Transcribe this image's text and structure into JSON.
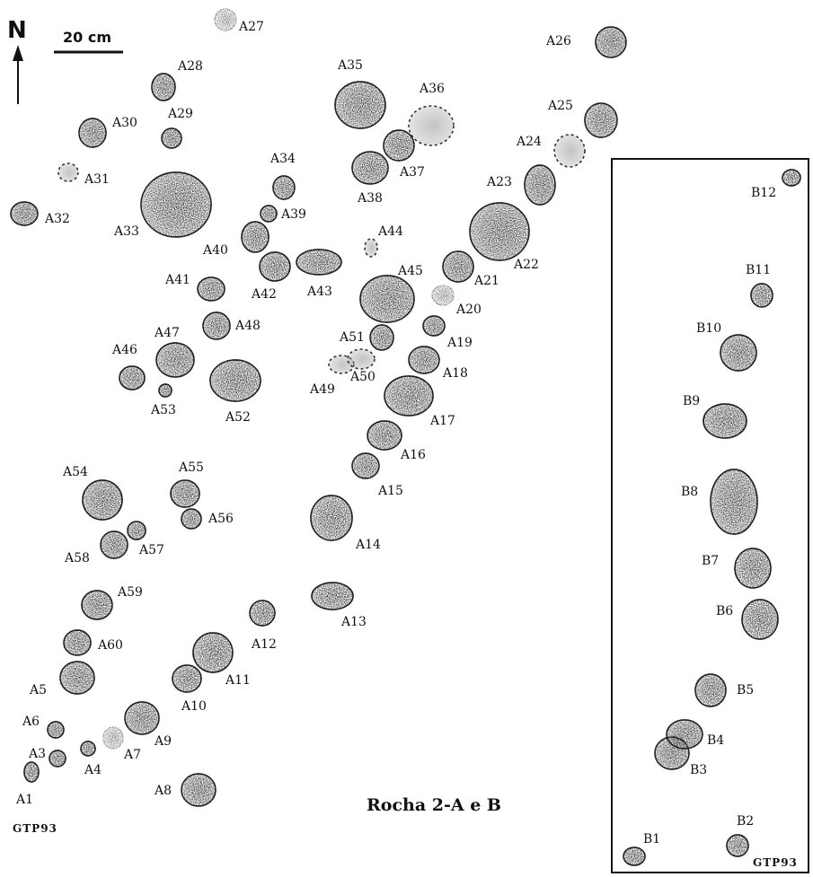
{
  "north_label": "N",
  "scale_label": "20 cm",
  "caption": "Rocha 2-A e B",
  "source_left": "GTP93",
  "source_right": "GTP93",
  "colors": {
    "ink": "#1b1b1b",
    "paper": "#ffffff"
  },
  "features": [
    {
      "id": "A1",
      "label": "A1",
      "style": "solid"
    },
    {
      "id": "A3",
      "label": "A3",
      "style": "solid"
    },
    {
      "id": "A4",
      "label": "A4",
      "style": "solid"
    },
    {
      "id": "A5",
      "label": "A5",
      "style": "solid"
    },
    {
      "id": "A6",
      "label": "A6",
      "style": "solid"
    },
    {
      "id": "A7",
      "label": "A7",
      "style": "light"
    },
    {
      "id": "A8",
      "label": "A8",
      "style": "solid"
    },
    {
      "id": "A9",
      "label": "A9",
      "style": "solid"
    },
    {
      "id": "A10",
      "label": "A10",
      "style": "solid"
    },
    {
      "id": "A11",
      "label": "A11",
      "style": "solid"
    },
    {
      "id": "A12",
      "label": "A12",
      "style": "solid"
    },
    {
      "id": "A13",
      "label": "A13",
      "style": "solid"
    },
    {
      "id": "A14",
      "label": "A14",
      "style": "solid"
    },
    {
      "id": "A15",
      "label": "A15",
      "style": "solid"
    },
    {
      "id": "A16",
      "label": "A16",
      "style": "solid"
    },
    {
      "id": "A17",
      "label": "A17",
      "style": "solid"
    },
    {
      "id": "A18",
      "label": "A18",
      "style": "solid"
    },
    {
      "id": "A19",
      "label": "A19",
      "style": "solid"
    },
    {
      "id": "A20",
      "label": "A20",
      "style": "light"
    },
    {
      "id": "A21",
      "label": "A21",
      "style": "solid"
    },
    {
      "id": "A22",
      "label": "A22",
      "style": "solid"
    },
    {
      "id": "A23",
      "label": "A23",
      "style": "solid"
    },
    {
      "id": "A24",
      "label": "A24",
      "style": "dashed"
    },
    {
      "id": "A25",
      "label": "A25",
      "style": "solid"
    },
    {
      "id": "A26",
      "label": "A26",
      "style": "solid"
    },
    {
      "id": "A27",
      "label": "A27",
      "style": "light"
    },
    {
      "id": "A28",
      "label": "A28",
      "style": "solid"
    },
    {
      "id": "A29",
      "label": "A29",
      "style": "solid"
    },
    {
      "id": "A30",
      "label": "A30",
      "style": "solid"
    },
    {
      "id": "A31",
      "label": "A31",
      "style": "dashed"
    },
    {
      "id": "A32",
      "label": "A32",
      "style": "solid"
    },
    {
      "id": "A33",
      "label": "A33",
      "style": "solid"
    },
    {
      "id": "A34",
      "label": "A34",
      "style": "solid"
    },
    {
      "id": "A35",
      "label": "A35",
      "style": "solid"
    },
    {
      "id": "A36",
      "label": "A36",
      "style": "dashed"
    },
    {
      "id": "A37",
      "label": "A37",
      "style": "solid"
    },
    {
      "id": "A38",
      "label": "A38",
      "style": "solid"
    },
    {
      "id": "A39",
      "label": "A39",
      "style": "solid"
    },
    {
      "id": "A40",
      "label": "A40",
      "style": "solid"
    },
    {
      "id": "A41",
      "label": "A41",
      "style": "solid"
    },
    {
      "id": "A42",
      "label": "A42",
      "style": "solid"
    },
    {
      "id": "A43",
      "label": "A43",
      "style": "solid"
    },
    {
      "id": "A44",
      "label": "A44",
      "style": "dashed"
    },
    {
      "id": "A45",
      "label": "A45",
      "style": "solid"
    },
    {
      "id": "A46",
      "label": "A46",
      "style": "solid"
    },
    {
      "id": "A47",
      "label": "A47",
      "style": "solid"
    },
    {
      "id": "A48",
      "label": "A48",
      "style": "solid"
    },
    {
      "id": "A49",
      "label": "A49",
      "style": "dashed"
    },
    {
      "id": "A50",
      "label": "A50",
      "style": "dashed"
    },
    {
      "id": "A51",
      "label": "A51",
      "style": "solid"
    },
    {
      "id": "A52",
      "label": "A52",
      "style": "solid"
    },
    {
      "id": "A53",
      "label": "A53",
      "style": "solid"
    },
    {
      "id": "A54",
      "label": "A54",
      "style": "solid"
    },
    {
      "id": "A55",
      "label": "A55",
      "style": "solid"
    },
    {
      "id": "A56",
      "label": "A56",
      "style": "solid"
    },
    {
      "id": "A57",
      "label": "A57",
      "style": "solid"
    },
    {
      "id": "A58",
      "label": "A58",
      "style": "solid"
    },
    {
      "id": "A59",
      "label": "A59",
      "style": "solid"
    },
    {
      "id": "A60",
      "label": "A60",
      "style": "solid"
    },
    {
      "id": "B1",
      "label": "B1",
      "style": "solid"
    },
    {
      "id": "B2",
      "label": "B2",
      "style": "solid"
    },
    {
      "id": "B3",
      "label": "B3",
      "style": "solid"
    },
    {
      "id": "B4",
      "label": "B4",
      "style": "solid"
    },
    {
      "id": "B5",
      "label": "B5",
      "style": "solid"
    },
    {
      "id": "B6",
      "label": "B6",
      "style": "solid"
    },
    {
      "id": "B7",
      "label": "B7",
      "style": "solid"
    },
    {
      "id": "B8",
      "label": "B8",
      "style": "solid"
    },
    {
      "id": "B9",
      "label": "B9",
      "style": "solid"
    },
    {
      "id": "B10",
      "label": "B10",
      "style": "solid"
    },
    {
      "id": "B11",
      "label": "B11",
      "style": "solid"
    },
    {
      "id": "B12",
      "label": "B12",
      "style": "solid"
    }
  ]
}
